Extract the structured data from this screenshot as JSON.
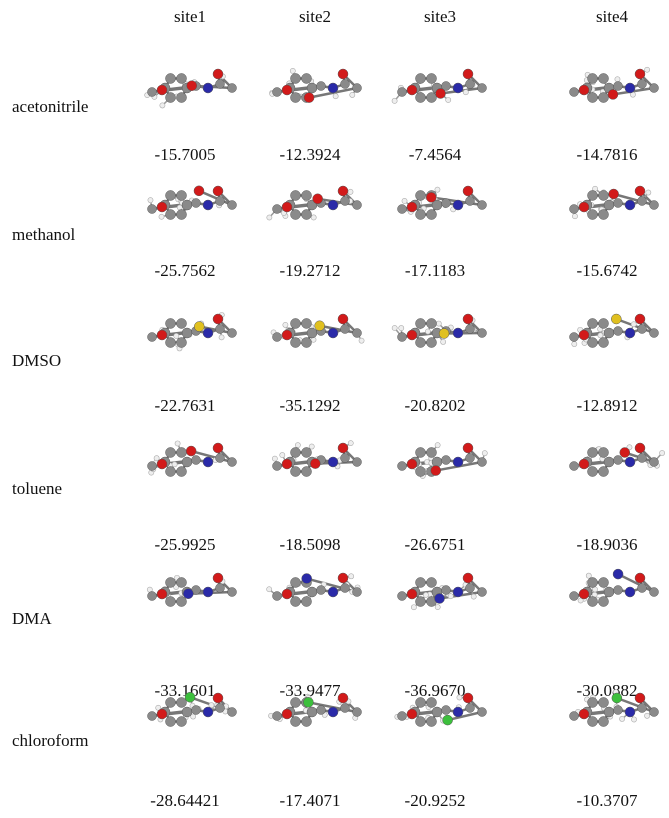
{
  "table": {
    "columns": [
      "site1",
      "site2",
      "site3",
      "site4"
    ],
    "rows": [
      {
        "label": "acetonitrile",
        "values": [
          "-15.7005",
          "-12.3924",
          "-7.4564",
          "-14.7816"
        ]
      },
      {
        "label": "methanol",
        "values": [
          "-25.7562",
          "-19.2712",
          "-17.1183",
          "-15.6742"
        ]
      },
      {
        "label": "DMSO",
        "values": [
          "-22.7631",
          "-35.1292",
          "-20.8202",
          "-12.8912"
        ]
      },
      {
        "label": "toluene",
        "values": [
          "-25.9925",
          "-18.5098",
          "-26.6751",
          "-18.9036"
        ]
      },
      {
        "label": "DMA",
        "values": [
          "-33.1601",
          "-33.9477",
          "-36.9670",
          "-30.0882"
        ]
      },
      {
        "label": "chloroform",
        "values": [
          "-28.64421",
          "-17.4071",
          "-20.9252",
          "-10.3707"
        ]
      }
    ]
  }
}
